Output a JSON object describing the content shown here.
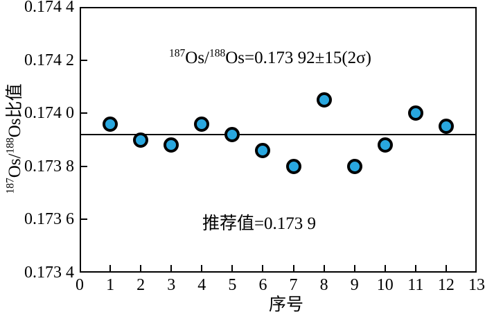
{
  "figure": {
    "y_axis_title": {
      "sup1": "187",
      "mid1": "Os/",
      "sup2": "188",
      "mid2": "Os比值"
    },
    "x_axis_title": "序号",
    "annotation_ratio": {
      "sup1": "187",
      "mid1": "Os/",
      "sup2": "188",
      "mid2": "Os=0.173 92±15(2σ)"
    },
    "annotation_recommended": "推荐值=0.173 9"
  },
  "chart_data": {
    "type": "scatter",
    "title": "",
    "xlabel": "序号",
    "ylabel": "187Os/188Os比值",
    "x": [
      1,
      2,
      3,
      4,
      5,
      6,
      7,
      8,
      9,
      10,
      11,
      12
    ],
    "y": [
      0.17396,
      0.1739,
      0.17388,
      0.17396,
      0.17392,
      0.17386,
      0.1738,
      0.17405,
      0.1738,
      0.17388,
      0.174,
      0.17395
    ],
    "xlim": [
      0,
      13
    ],
    "ylim": [
      0.1734,
      0.1744
    ],
    "x_ticks": [
      0,
      1,
      2,
      3,
      4,
      5,
      6,
      7,
      8,
      9,
      10,
      11,
      12,
      13
    ],
    "y_ticks": [
      0.1734,
      0.1736,
      0.1738,
      0.174,
      0.1742,
      0.1744
    ],
    "y_tick_labels": [
      "0.173 4",
      "0.173 6",
      "0.173 8",
      "0.174 0",
      "0.174 2",
      "0.174 4"
    ],
    "reference_line": 0.17392,
    "annotations": [
      "187Os/188Os=0.173 92±15(2σ)",
      "推荐值=0.173 9"
    ],
    "marker_fill": "#29A7DF",
    "marker_stroke": "#000000",
    "axis_color": "#000000",
    "grid": false,
    "legend": null
  }
}
